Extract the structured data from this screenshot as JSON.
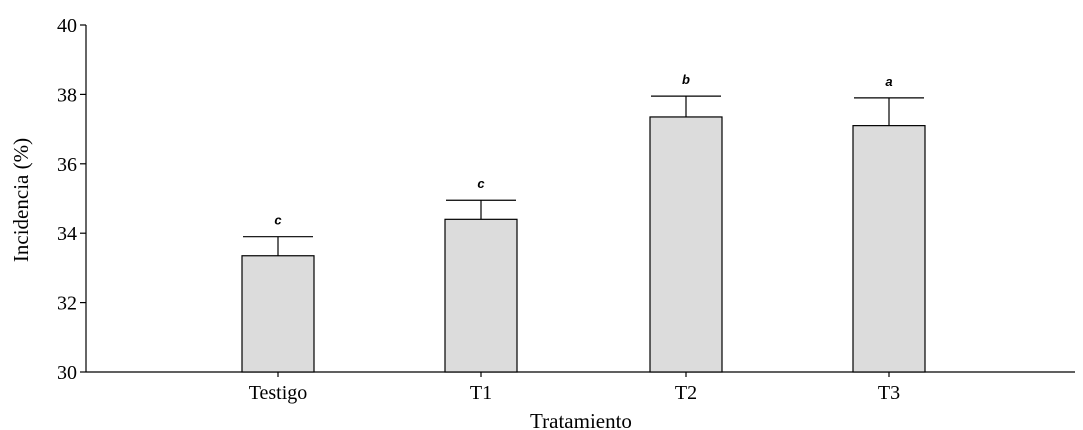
{
  "chart_data": {
    "type": "bar",
    "title": "",
    "xlabel": "Tratamiento",
    "ylabel": "Incidencia (%)",
    "categories": [
      "Testigo",
      "T1",
      "T2",
      "T3"
    ],
    "values": [
      33.35,
      34.4,
      37.35,
      37.1
    ],
    "error_upper": [
      33.9,
      34.95,
      37.95,
      37.9
    ],
    "significance_labels": [
      "c",
      "c",
      "b",
      "a"
    ],
    "ylim": [
      30,
      40
    ],
    "yticks": [
      30,
      32,
      34,
      36,
      38,
      40
    ],
    "grid": false,
    "bar_color": "#dcdcdc"
  }
}
